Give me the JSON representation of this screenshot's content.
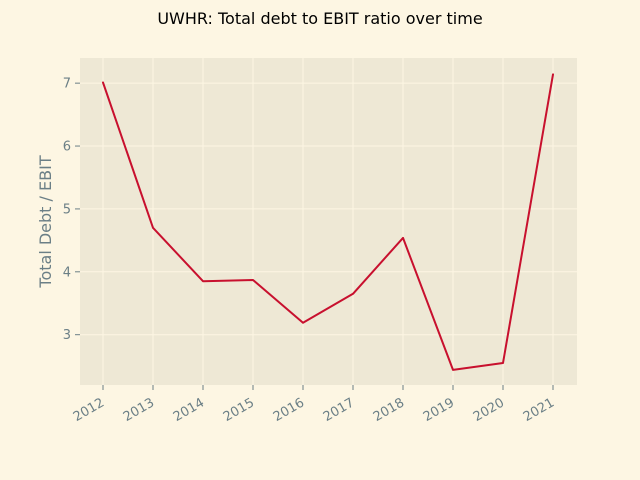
{
  "chart_data": {
    "type": "line",
    "title": "UWHR: Total debt to EBIT ratio over time",
    "xlabel": "",
    "ylabel": "Total Debt / EBIT",
    "categories": [
      "2012",
      "2013",
      "2014",
      "2015",
      "2016",
      "2017",
      "2018",
      "2019",
      "2020",
      "2021"
    ],
    "series": [
      {
        "values": [
          7.01,
          4.7,
          3.85,
          3.87,
          3.19,
          3.65,
          4.54,
          2.44,
          2.55,
          7.14
        ]
      }
    ],
    "yticks": [
      3,
      4,
      5,
      6,
      7
    ],
    "ylim": [
      2.2,
      7.4
    ],
    "grid": true,
    "colors": {
      "line": "#c8102e",
      "plot_bg": "#eee8d5",
      "page_bg": "#fdf6e3",
      "grid": "#fdf6e3",
      "text": "#6b7f86"
    }
  }
}
